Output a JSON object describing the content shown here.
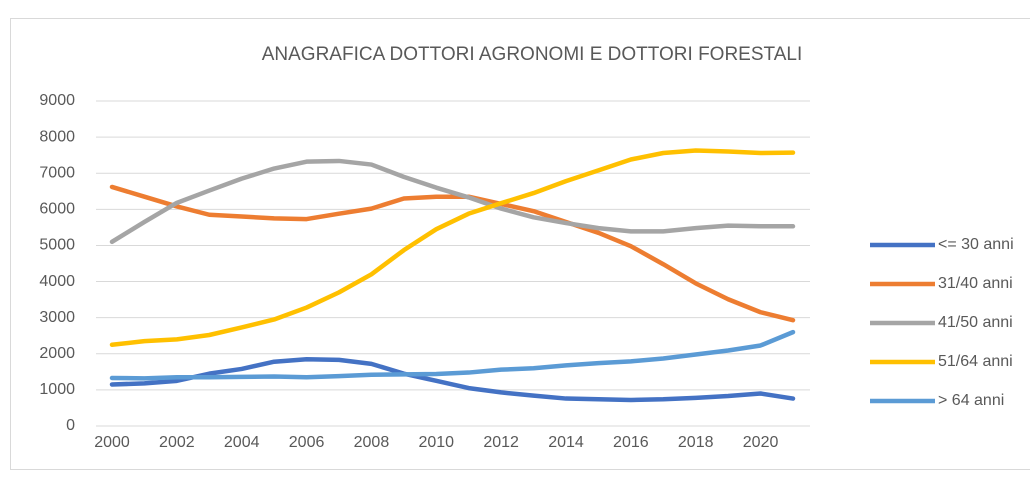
{
  "chart_data": {
    "type": "line",
    "title": "ANAGRAFICA DOTTORI AGRONOMI E DOTTORI FORESTALI",
    "x": [
      2000,
      2001,
      2002,
      2003,
      2004,
      2005,
      2006,
      2007,
      2008,
      2009,
      2010,
      2011,
      2012,
      2013,
      2014,
      2015,
      2016,
      2017,
      2018,
      2019,
      2020,
      2021
    ],
    "xlim": [
      2000,
      2021
    ],
    "xticks": [
      2000,
      2002,
      2004,
      2006,
      2008,
      2010,
      2012,
      2014,
      2016,
      2018,
      2020
    ],
    "ylim": [
      0,
      9000
    ],
    "yticks": [
      0,
      1000,
      2000,
      3000,
      4000,
      5000,
      6000,
      7000,
      8000,
      9000
    ],
    "grid": true,
    "legend": "right",
    "series": [
      {
        "name": "<= 30 anni",
        "color": "#4472c4",
        "values": [
          1150,
          1180,
          1250,
          1450,
          1580,
          1780,
          1850,
          1830,
          1720,
          1450,
          1250,
          1050,
          930,
          840,
          760,
          740,
          720,
          740,
          780,
          830,
          900,
          760
        ]
      },
      {
        "name": "31/40 anni",
        "color": "#ed7d31",
        "values": [
          6620,
          6350,
          6080,
          5850,
          5800,
          5750,
          5730,
          5880,
          6020,
          6300,
          6350,
          6350,
          6150,
          5950,
          5650,
          5350,
          4980,
          4480,
          3950,
          3510,
          3150,
          2930
        ]
      },
      {
        "name": "41/50 anni",
        "color": "#a5a5a5",
        "values": [
          5100,
          5650,
          6180,
          6520,
          6850,
          7130,
          7320,
          7340,
          7240,
          6900,
          6600,
          6330,
          6020,
          5780,
          5620,
          5480,
          5390,
          5390,
          5480,
          5550,
          5530,
          5530
        ]
      },
      {
        "name": "51/64 anni",
        "color": "#ffc000",
        "values": [
          2250,
          2350,
          2400,
          2520,
          2730,
          2950,
          3280,
          3700,
          4200,
          4870,
          5450,
          5880,
          6170,
          6450,
          6780,
          7080,
          7380,
          7560,
          7630,
          7600,
          7560,
          7570
        ]
      },
      {
        "name": "> 64 anni",
        "color": "#5b9bd5",
        "values": [
          1330,
          1320,
          1350,
          1350,
          1360,
          1370,
          1350,
          1380,
          1420,
          1430,
          1440,
          1480,
          1560,
          1600,
          1680,
          1740,
          1790,
          1870,
          1980,
          2090,
          2230,
          2600
        ]
      }
    ]
  }
}
